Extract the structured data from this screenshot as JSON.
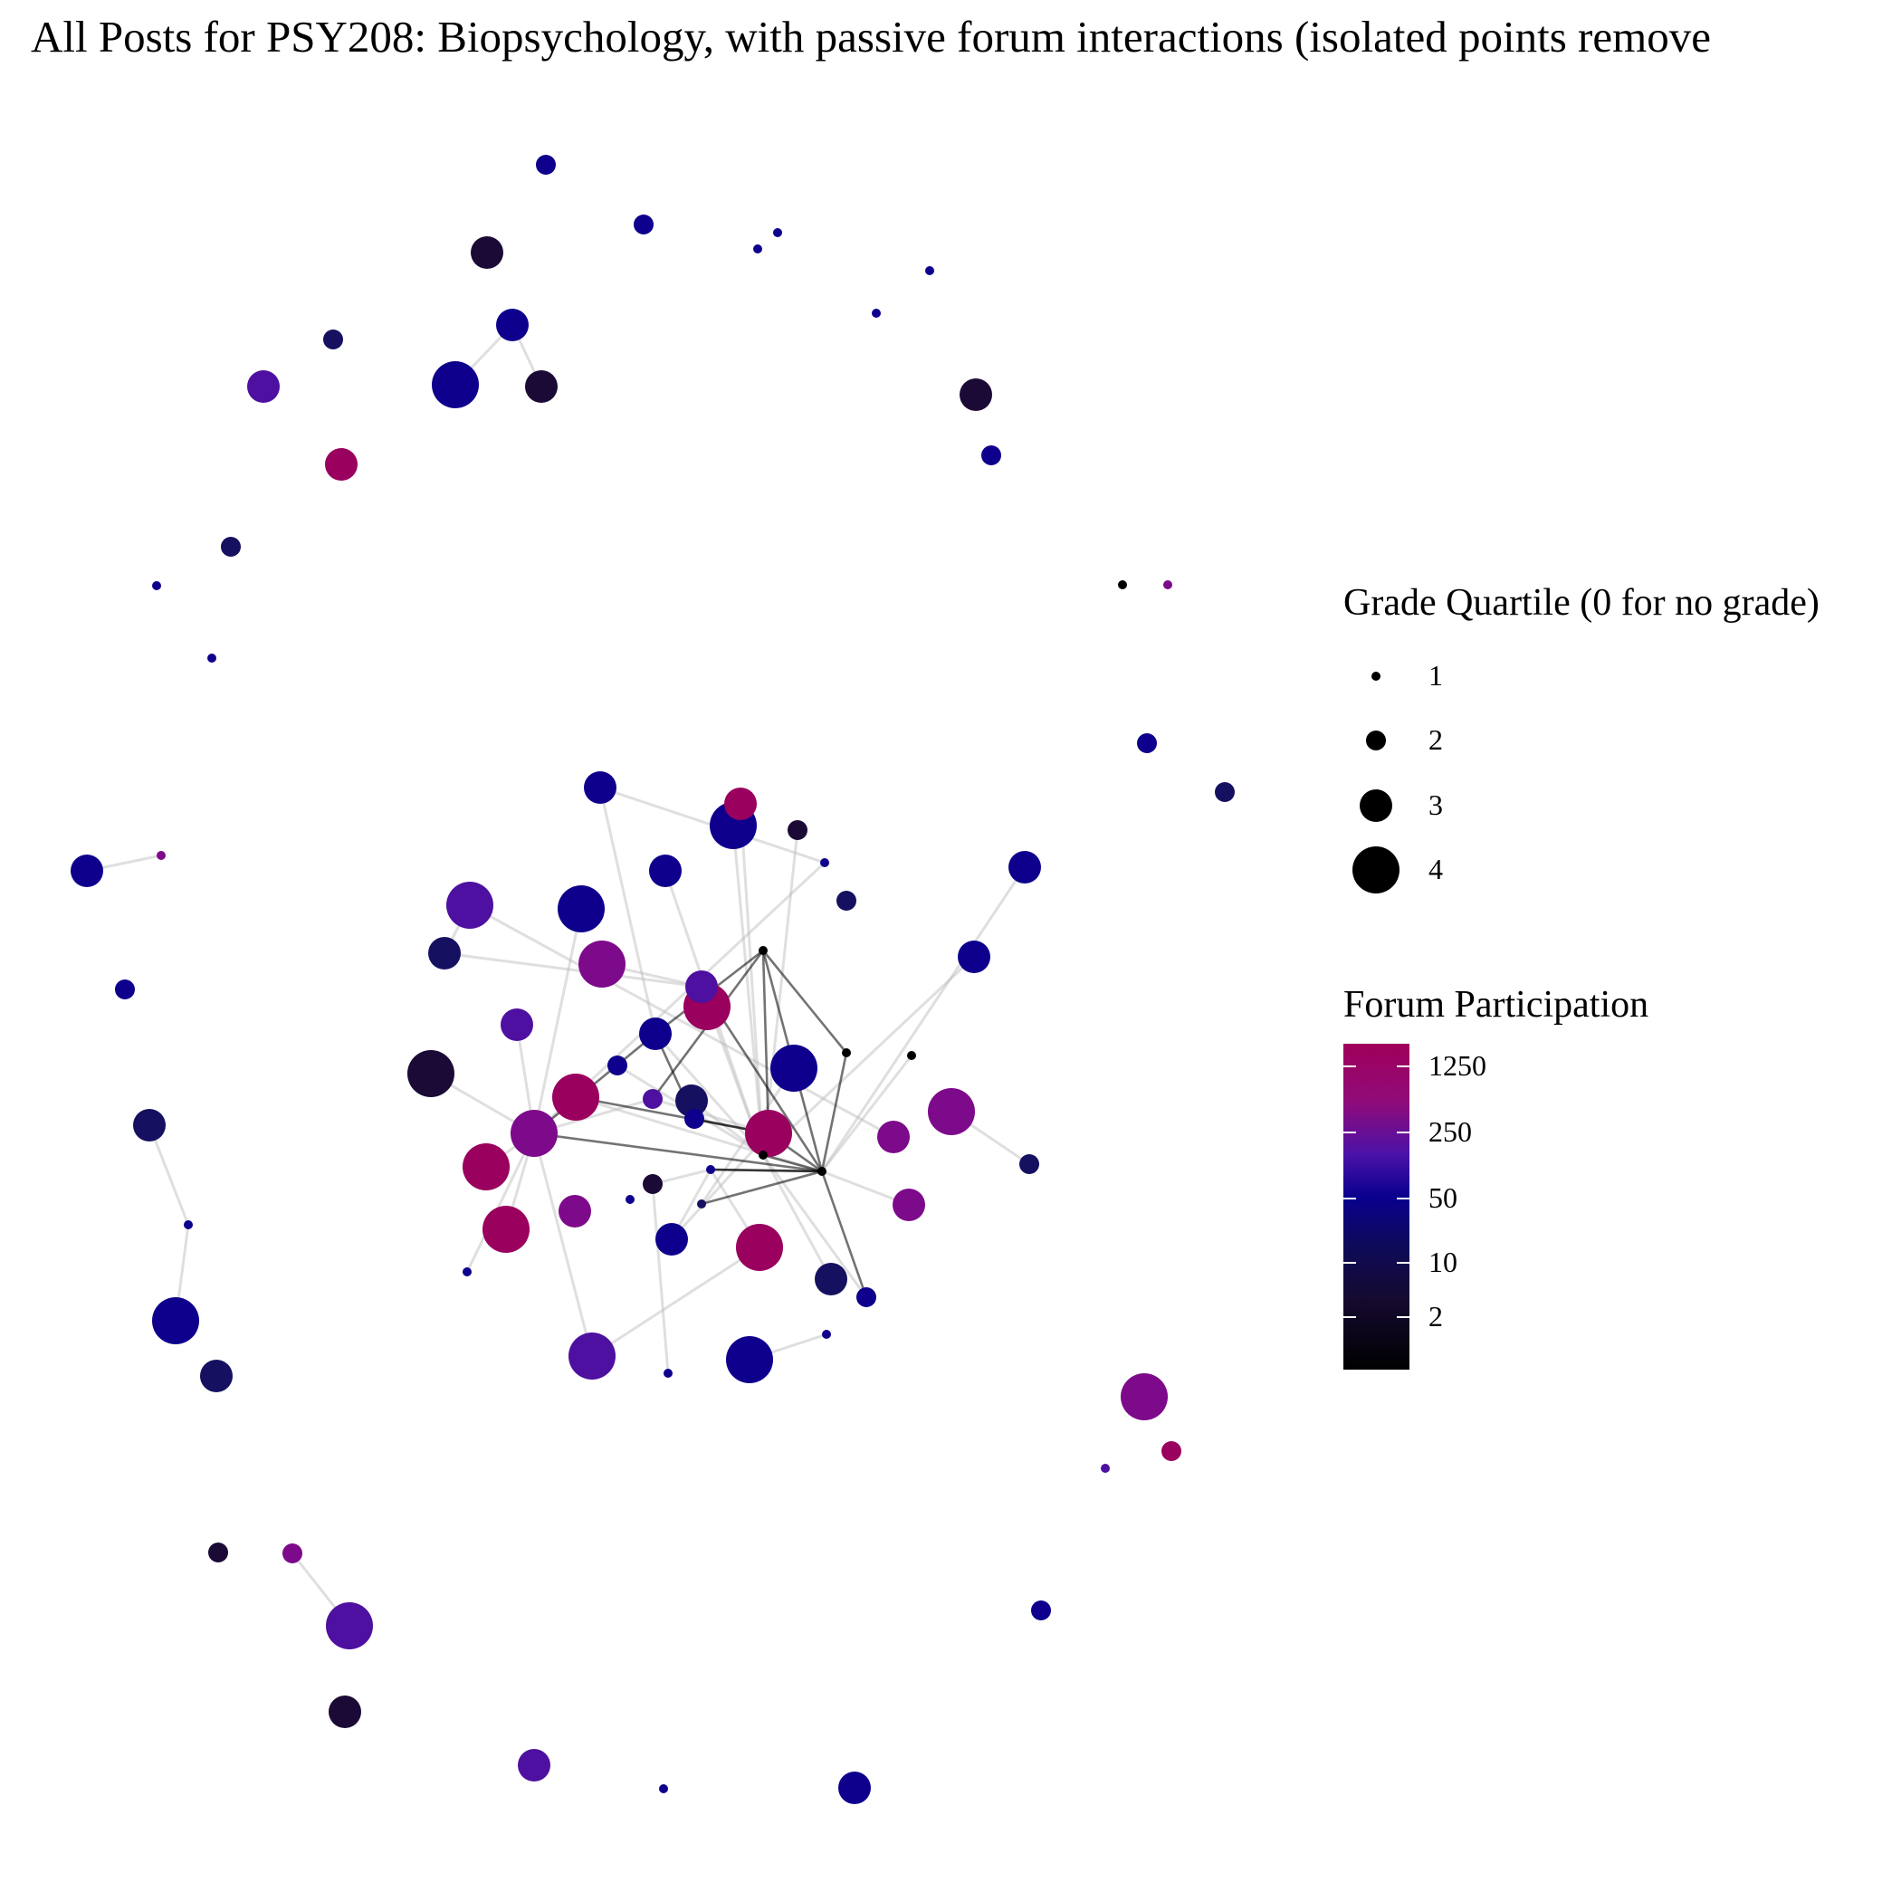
{
  "title": "All Posts for PSY208: Biopsychology, with passive forum interactions (isolated points remove",
  "legend_size": {
    "title": "Grade Quartile (0 for no grade)",
    "items": [
      {
        "label": "1",
        "quartile": 1
      },
      {
        "label": "2",
        "quartile": 2
      },
      {
        "label": "3",
        "quartile": 3
      },
      {
        "label": "4",
        "quartile": 4
      }
    ]
  },
  "legend_color": {
    "title": "Forum Participation",
    "ticks": [
      {
        "label": "1250",
        "value": 1250
      },
      {
        "label": "250",
        "value": 250
      },
      {
        "label": "50",
        "value": 50
      },
      {
        "label": "10",
        "value": 10
      },
      {
        "label": "2",
        "value": 2
      }
    ],
    "scale": "log",
    "colors": {
      "high": "#a0005a",
      "mid_high": "#7a0f96",
      "mid": "#0a008e",
      "low": "#0e0a5a",
      "zero": "#000000"
    }
  }
}
